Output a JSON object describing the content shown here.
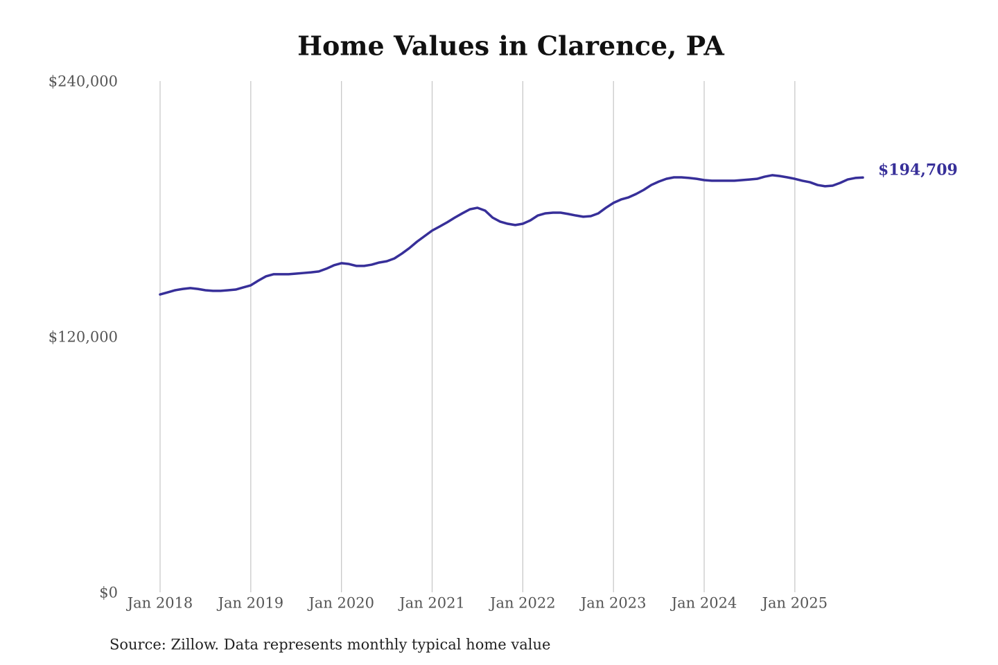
{
  "chart_data": {
    "type": "line",
    "title": "Home Values in Clarence, PA",
    "source": "Source: Zillow. Data represents monthly typical home value",
    "x": [
      "2018-01",
      "2018-02",
      "2018-03",
      "2018-04",
      "2018-05",
      "2018-06",
      "2018-07",
      "2018-08",
      "2018-09",
      "2018-10",
      "2018-11",
      "2018-12",
      "2019-01",
      "2019-02",
      "2019-03",
      "2019-04",
      "2019-05",
      "2019-06",
      "2019-07",
      "2019-08",
      "2019-09",
      "2019-10",
      "2019-11",
      "2019-12",
      "2020-01",
      "2020-02",
      "2020-03",
      "2020-04",
      "2020-05",
      "2020-06",
      "2020-07",
      "2020-08",
      "2020-09",
      "2020-10",
      "2020-11",
      "2020-12",
      "2021-01",
      "2021-02",
      "2021-03",
      "2021-04",
      "2021-05",
      "2021-06",
      "2021-07",
      "2021-08",
      "2021-09",
      "2021-10",
      "2021-11",
      "2021-12",
      "2022-01",
      "2022-02",
      "2022-03",
      "2022-04",
      "2022-05",
      "2022-06",
      "2022-07",
      "2022-08",
      "2022-09",
      "2022-10",
      "2022-11",
      "2022-12",
      "2023-01",
      "2023-02",
      "2023-03",
      "2023-04",
      "2023-05",
      "2023-06",
      "2023-07",
      "2023-08",
      "2023-09",
      "2023-10",
      "2023-11",
      "2023-12",
      "2024-01",
      "2024-02",
      "2024-03",
      "2024-04",
      "2024-05",
      "2024-06",
      "2024-07",
      "2024-08",
      "2024-09",
      "2024-10",
      "2024-11",
      "2024-12",
      "2025-01",
      "2025-02",
      "2025-03",
      "2025-04",
      "2025-05",
      "2025-06",
      "2025-07",
      "2025-08",
      "2025-09",
      "2025-10"
    ],
    "series": [
      {
        "name": "Typical home value",
        "color": "#372f99",
        "values": [
          139800,
          140800,
          141800,
          142400,
          142800,
          142400,
          141800,
          141500,
          141500,
          141800,
          142100,
          143100,
          144100,
          146300,
          148300,
          149300,
          149300,
          149300,
          149600,
          149900,
          150200,
          150600,
          151900,
          153500,
          154500,
          154100,
          153200,
          153200,
          153800,
          154800,
          155400,
          156700,
          159000,
          161600,
          164600,
          167200,
          169800,
          171700,
          173700,
          175900,
          177900,
          179800,
          180500,
          179200,
          175900,
          174000,
          173000,
          172400,
          173000,
          174600,
          176900,
          177900,
          178200,
          178200,
          177600,
          176900,
          176300,
          176600,
          177900,
          180500,
          182800,
          184400,
          185400,
          187000,
          188900,
          191200,
          192800,
          194100,
          194800,
          194800,
          194500,
          194100,
          193500,
          193200,
          193200,
          193200,
          193200,
          193500,
          193800,
          194100,
          195100,
          195800,
          195400,
          194800,
          194100,
          193200,
          192500,
          191200,
          190600,
          190900,
          192200,
          193800,
          194500,
          194709
        ],
        "value_labels": [
          null,
          null,
          null,
          null,
          null,
          null,
          null,
          null,
          null,
          null,
          null,
          null,
          null,
          null,
          null,
          null,
          null,
          null,
          null,
          null,
          null,
          null,
          null,
          null,
          null,
          null,
          null,
          null,
          null,
          null,
          null,
          null,
          null,
          null,
          null,
          null,
          null,
          null,
          null,
          null,
          null,
          null,
          null,
          null,
          null,
          null,
          null,
          null,
          null,
          null,
          null,
          null,
          null,
          null,
          null,
          null,
          null,
          null,
          null,
          null,
          null,
          null,
          null,
          null,
          null,
          null,
          null,
          null,
          null,
          null,
          null,
          null,
          null,
          null,
          null,
          null,
          null,
          null,
          null,
          null,
          null,
          null,
          null,
          null,
          null,
          null,
          null,
          null,
          null,
          null,
          null,
          null,
          null,
          "$194,709"
        ]
      }
    ],
    "xlim": [
      "2018-01",
      "2025-10"
    ],
    "xticks": [
      {
        "value": "2018-01",
        "label": "Jan 2018"
      },
      {
        "value": "2019-01",
        "label": "Jan 2019"
      },
      {
        "value": "2020-01",
        "label": "Jan 2020"
      },
      {
        "value": "2021-01",
        "label": "Jan 2021"
      },
      {
        "value": "2022-01",
        "label": "Jan 2022"
      },
      {
        "value": "2023-01",
        "label": "Jan 2023"
      },
      {
        "value": "2024-01",
        "label": "Jan 2024"
      },
      {
        "value": "2025-01",
        "label": "Jan 2025"
      }
    ],
    "ylim": [
      0,
      240000
    ],
    "yticks": [
      {
        "value": 0,
        "label": "$0"
      },
      {
        "value": 120000,
        "label": "$120,000"
      },
      {
        "value": 240000,
        "label": "$240,000"
      }
    ],
    "grid": "x"
  }
}
